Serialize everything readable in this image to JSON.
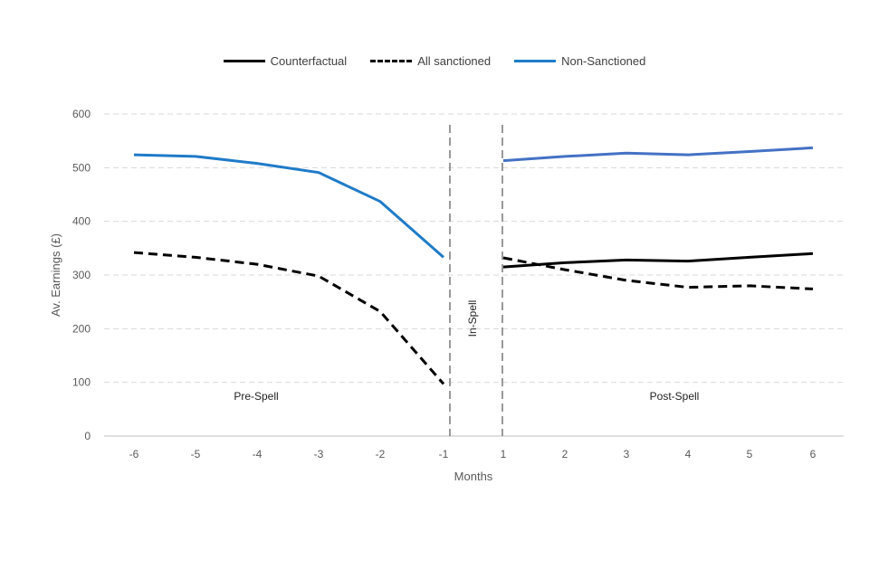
{
  "chart_data": {
    "type": "line",
    "title": "",
    "xlabel": "Months",
    "ylabel": "Av. Earnings (£)",
    "ylim": [
      0,
      600
    ],
    "yticks": [
      "0",
      "100",
      "200",
      "300",
      "400",
      "500",
      "600"
    ],
    "categories": [
      "-6",
      "-5",
      "-4",
      "-3",
      "-2",
      "-1",
      "1",
      "2",
      "3",
      "4",
      "5",
      "6"
    ],
    "grid": true,
    "legend_position": "top-center",
    "series": [
      {
        "name": "Counterfactual",
        "style": "solid",
        "color": "#000000",
        "segments": [
          {
            "x": [
              "1",
              "2",
              "3",
              "4",
              "5",
              "6"
            ],
            "values": [
              315,
              323,
              328,
              326,
              333,
              340
            ]
          }
        ]
      },
      {
        "name": "All sanctioned",
        "style": "dashed",
        "color": "#000000",
        "segments": [
          {
            "x": [
              "-6",
              "-5",
              "-4",
              "-3",
              "-2",
              "-1"
            ],
            "values": [
              342,
              333,
              320,
              298,
              232,
              97
            ]
          },
          {
            "x": [
              "1",
              "2",
              "3",
              "4",
              "5",
              "6"
            ],
            "values": [
              332,
              310,
              290,
              277,
              280,
              274
            ]
          }
        ]
      },
      {
        "name": "Non-Sanctioned",
        "style": "solid",
        "color": "#1f7bc8",
        "segments": [
          {
            "x": [
              "-6",
              "-5",
              "-4",
              "-3",
              "-2",
              "-1"
            ],
            "values": [
              524,
              521,
              508,
              491,
              437,
              333
            ]
          },
          {
            "x": [
              "1",
              "2",
              "3",
              "4",
              "5",
              "6"
            ],
            "values": [
              513,
              521,
              527,
              524,
              530,
              537
            ]
          }
        ]
      }
    ],
    "annotations": {
      "pre_spell": "Pre-Spell",
      "in_spell": "In-Spell",
      "post_spell": "Post-Spell"
    }
  },
  "legend": {
    "counterfactual": "Counterfactual",
    "all_sanctioned": "All sanctioned",
    "non_sanctioned": "Non-Sanctioned"
  }
}
